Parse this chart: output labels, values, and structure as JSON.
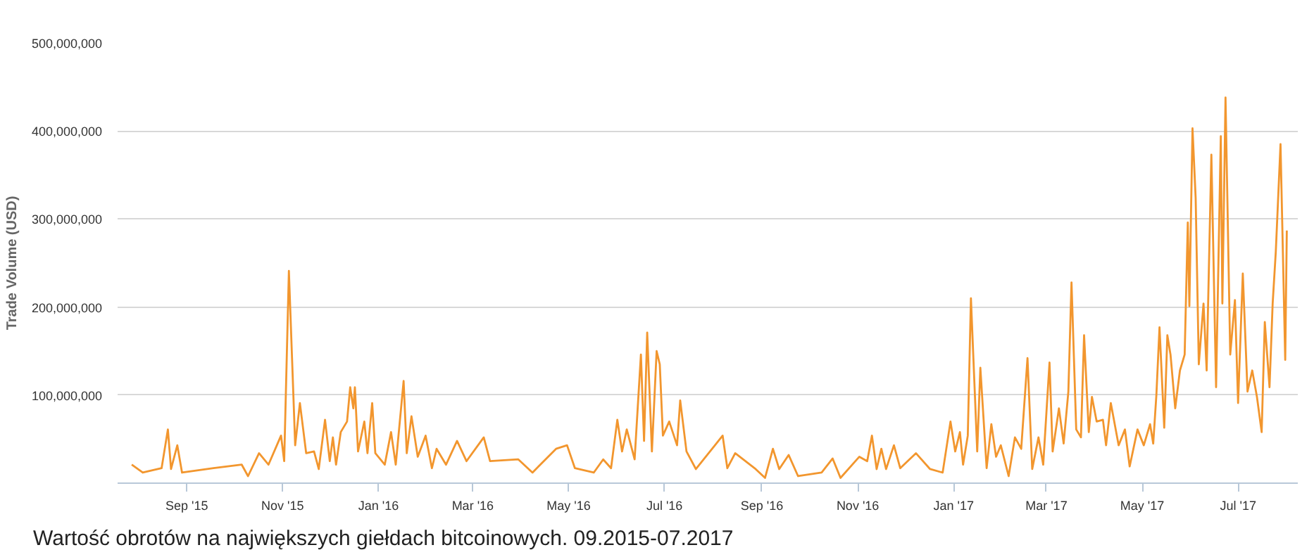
{
  "chart_data": {
    "type": "line",
    "ylabel": "Trade Volume (USD)",
    "annotations": [
      "Wartość obrotów na największych giełdach bitcoinowych. 09.2015-07.2017"
    ],
    "xlim": [
      "2015-07-19",
      "2017-08-08"
    ],
    "xticks": [
      {
        "value": "2015-09-01",
        "label": "Sep '15"
      },
      {
        "value": "2015-11-01",
        "label": "Nov '15"
      },
      {
        "value": "2016-01-01",
        "label": "Jan '16"
      },
      {
        "value": "2016-03-01",
        "label": "Mar '16"
      },
      {
        "value": "2016-05-01",
        "label": "May '16"
      },
      {
        "value": "2016-07-01",
        "label": "Jul '16"
      },
      {
        "value": "2016-09-01",
        "label": "Sep '16"
      },
      {
        "value": "2016-11-01",
        "label": "Nov '16"
      },
      {
        "value": "2017-01-01",
        "label": "Jan '17"
      },
      {
        "value": "2017-03-01",
        "label": "Mar '17"
      },
      {
        "value": "2017-05-01",
        "label": "May '17"
      },
      {
        "value": "2017-07-01",
        "label": "Jul '17"
      }
    ],
    "ylim": [
      0,
      500000000
    ],
    "yticks": [
      {
        "value": 100000000,
        "label": "100,000,000"
      },
      {
        "value": 200000000,
        "label": "200,000,000"
      },
      {
        "value": 300000000,
        "label": "300,000,000"
      },
      {
        "value": 400000000,
        "label": "400,000,000"
      },
      {
        "value": 500000000,
        "label": "500,000,000"
      }
    ],
    "grid": "y",
    "marker": "none",
    "line_style": "solid",
    "series": [
      {
        "color": "#f2962e",
        "x": [
          "2015-07-28",
          "2015-08-04",
          "2015-08-16",
          "2015-08-20",
          "2015-08-22",
          "2015-08-26",
          "2015-08-29",
          "2015-09-18",
          "2015-10-06",
          "2015-10-10",
          "2015-10-17",
          "2015-10-23",
          "2015-10-31",
          "2015-11-02",
          "2015-11-05",
          "2015-11-09",
          "2015-11-12",
          "2015-11-16",
          "2015-11-21",
          "2015-11-24",
          "2015-11-28",
          "2015-12-01",
          "2015-12-03",
          "2015-12-05",
          "2015-12-08",
          "2015-12-12",
          "2015-12-14",
          "2015-12-16",
          "2015-12-17",
          "2015-12-19",
          "2015-12-23",
          "2015-12-25",
          "2015-12-28",
          "2015-12-30",
          "2016-01-05",
          "2016-01-09",
          "2016-01-12",
          "2016-01-17",
          "2016-01-19",
          "2016-01-22",
          "2016-01-26",
          "2016-01-31",
          "2016-02-04",
          "2016-02-07",
          "2016-02-13",
          "2016-02-20",
          "2016-02-26",
          "2016-03-08",
          "2016-03-12",
          "2016-03-30",
          "2016-04-08",
          "2016-04-23",
          "2016-04-30",
          "2016-05-05",
          "2016-05-17",
          "2016-05-23",
          "2016-05-28",
          "2016-06-01",
          "2016-06-04",
          "2016-06-07",
          "2016-06-12",
          "2016-06-16",
          "2016-06-18",
          "2016-06-20",
          "2016-06-23",
          "2016-06-26",
          "2016-06-28",
          "2016-06-30",
          "2016-07-04",
          "2016-07-09",
          "2016-07-11",
          "2016-07-15",
          "2016-07-21",
          "2016-08-07",
          "2016-08-10",
          "2016-08-15",
          "2016-08-28",
          "2016-09-03",
          "2016-09-08",
          "2016-09-12",
          "2016-09-18",
          "2016-09-24",
          "2016-10-09",
          "2016-10-16",
          "2016-10-21",
          "2016-11-02",
          "2016-11-07",
          "2016-11-10",
          "2016-11-13",
          "2016-11-16",
          "2016-11-19",
          "2016-11-24",
          "2016-11-28",
          "2016-12-08",
          "2016-12-17",
          "2016-12-25",
          "2016-12-30",
          "2017-01-02",
          "2017-01-05",
          "2017-01-07",
          "2017-01-10",
          "2017-01-12",
          "2017-01-16",
          "2017-01-18",
          "2017-01-22",
          "2017-01-25",
          "2017-01-28",
          "2017-01-31",
          "2017-02-05",
          "2017-02-09",
          "2017-02-13",
          "2017-02-17",
          "2017-02-20",
          "2017-02-24",
          "2017-02-27",
          "2017-03-03",
          "2017-03-05",
          "2017-03-09",
          "2017-03-12",
          "2017-03-15",
          "2017-03-17",
          "2017-03-20",
          "2017-03-23",
          "2017-03-25",
          "2017-03-28",
          "2017-03-30",
          "2017-04-02",
          "2017-04-06",
          "2017-04-08",
          "2017-04-11",
          "2017-04-16",
          "2017-04-20",
          "2017-04-23",
          "2017-04-28",
          "2017-05-02",
          "2017-05-06",
          "2017-05-08",
          "2017-05-10",
          "2017-05-12",
          "2017-05-15",
          "2017-05-17",
          "2017-05-19",
          "2017-05-22",
          "2017-05-25",
          "2017-05-28",
          "2017-05-30",
          "2017-05-31",
          "2017-06-02",
          "2017-06-04",
          "2017-06-06",
          "2017-06-09",
          "2017-06-11",
          "2017-06-14",
          "2017-06-17",
          "2017-06-20",
          "2017-06-21",
          "2017-06-23",
          "2017-06-26",
          "2017-06-29",
          "2017-07-01",
          "2017-07-04",
          "2017-07-07",
          "2017-07-10",
          "2017-07-13",
          "2017-07-16",
          "2017-07-18",
          "2017-07-21",
          "2017-07-23",
          "2017-07-25",
          "2017-07-28",
          "2017-07-31",
          "2017-08-01"
        ],
        "values": [
          21000000,
          12000000,
          17000000,
          61000000,
          16000000,
          43000000,
          12000000,
          17000000,
          21000000,
          8000000,
          34000000,
          21000000,
          54000000,
          25000000,
          241000000,
          43000000,
          91000000,
          34000000,
          36000000,
          16000000,
          72000000,
          25000000,
          52000000,
          21000000,
          58000000,
          70000000,
          109000000,
          85000000,
          109000000,
          36000000,
          70000000,
          34000000,
          91000000,
          34000000,
          21000000,
          58000000,
          21000000,
          116000000,
          34000000,
          76000000,
          30000000,
          54000000,
          17000000,
          39000000,
          21000000,
          48000000,
          25000000,
          52000000,
          25000000,
          27000000,
          12000000,
          39000000,
          43000000,
          17000000,
          12000000,
          27000000,
          17000000,
          72000000,
          36000000,
          61000000,
          27000000,
          146000000,
          48000000,
          171000000,
          36000000,
          150000000,
          135000000,
          54000000,
          70000000,
          43000000,
          94000000,
          36000000,
          16000000,
          54000000,
          17000000,
          34000000,
          16000000,
          6000000,
          39000000,
          16000000,
          32000000,
          8000000,
          12000000,
          28000000,
          6000000,
          30000000,
          25000000,
          54000000,
          16000000,
          39000000,
          16000000,
          43000000,
          17000000,
          34000000,
          16000000,
          12000000,
          70000000,
          36000000,
          58000000,
          21000000,
          54000000,
          210000000,
          36000000,
          131000000,
          17000000,
          67000000,
          30000000,
          43000000,
          8000000,
          52000000,
          39000000,
          142000000,
          16000000,
          52000000,
          21000000,
          137000000,
          36000000,
          85000000,
          45000000,
          104000000,
          228000000,
          61000000,
          52000000,
          168000000,
          58000000,
          98000000,
          70000000,
          72000000,
          43000000,
          91000000,
          43000000,
          61000000,
          19000000,
          61000000,
          43000000,
          67000000,
          45000000,
          100000000,
          177000000,
          63000000,
          168000000,
          146000000,
          85000000,
          128000000,
          146000000,
          296000000,
          201000000,
          403000000,
          324000000,
          135000000,
          204000000,
          128000000,
          373000000,
          109000000,
          394000000,
          204000000,
          438000000,
          146000000,
          208000000,
          91000000,
          238000000,
          104000000,
          128000000,
          98000000,
          58000000,
          183000000,
          109000000,
          204000000,
          263000000,
          385000000,
          140000000,
          287000000
        ]
      }
    ]
  }
}
